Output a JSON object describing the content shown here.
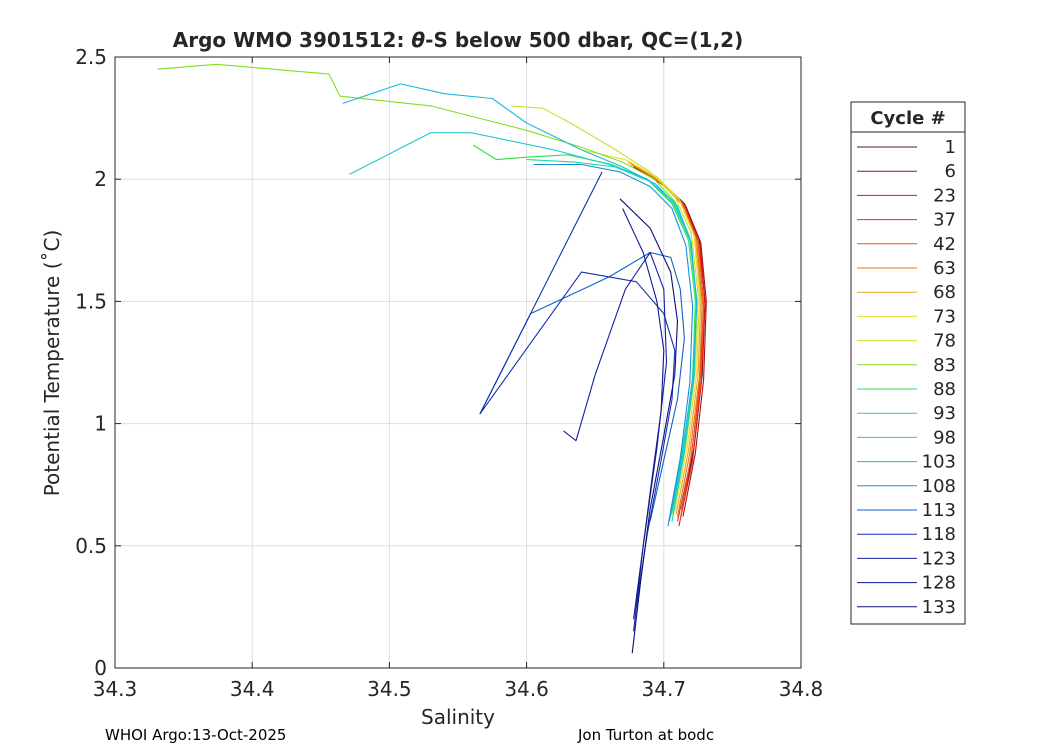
{
  "chart_data": {
    "type": "line",
    "title_prefix": "Argo WMO 3901512: ",
    "title_theta": "θ",
    "title_suffix": "-S below 500 dbar,  QC=(1,2)",
    "xlabel": "Salinity",
    "ylabel": "Potential Temperature (˚C)",
    "xlim": [
      34.3,
      34.8
    ],
    "ylim": [
      0,
      2.5
    ],
    "xticks": [
      "34.3",
      "34.4",
      "34.5",
      "34.6",
      "34.7",
      "34.8"
    ],
    "yticks": [
      "0",
      "0.5",
      "1",
      "1.5",
      "2",
      "2.5"
    ],
    "grid": true,
    "legend_title": "Cycle #",
    "legend_position": "right-outside",
    "series": [
      {
        "name": "1",
        "color": "#6b1010",
        "x": [
          34.678,
          34.7,
          34.715,
          34.726,
          34.73,
          34.728,
          34.722,
          34.713
        ],
        "y": [
          2.05,
          1.98,
          1.9,
          1.75,
          1.5,
          1.2,
          0.9,
          0.65
        ]
      },
      {
        "name": "6",
        "color": "#a81010",
        "x": [
          34.682,
          34.702,
          34.716,
          34.727,
          34.731,
          34.729,
          34.723,
          34.714
        ],
        "y": [
          2.04,
          1.97,
          1.89,
          1.74,
          1.5,
          1.18,
          0.88,
          0.62
        ]
      },
      {
        "name": "23",
        "color": "#d41818",
        "x": [
          34.68,
          34.701,
          34.716,
          34.727,
          34.73,
          34.727,
          34.721,
          34.711
        ],
        "y": [
          2.05,
          1.97,
          1.88,
          1.72,
          1.48,
          1.15,
          0.85,
          0.58
        ]
      },
      {
        "name": "37",
        "color": "#e83018",
        "x": [
          34.678,
          34.699,
          34.715,
          34.726,
          34.729,
          34.726,
          34.72,
          34.71
        ],
        "y": [
          2.06,
          1.98,
          1.89,
          1.73,
          1.47,
          1.16,
          0.86,
          0.6
        ]
      },
      {
        "name": "42",
        "color": "#f05020",
        "x": [
          34.676,
          34.698,
          34.714,
          34.725,
          34.729,
          34.727,
          34.72,
          34.712
        ],
        "y": [
          2.06,
          1.99,
          1.9,
          1.74,
          1.49,
          1.17,
          0.87,
          0.61
        ]
      },
      {
        "name": "63",
        "color": "#e07818",
        "x": [
          34.675,
          34.697,
          34.713,
          34.724,
          34.728,
          34.726,
          34.719,
          34.71
        ],
        "y": [
          2.07,
          1.99,
          1.9,
          1.75,
          1.5,
          1.19,
          0.88,
          0.62
        ]
      },
      {
        "name": "68",
        "color": "#e8a820",
        "x": [
          34.674,
          34.696,
          34.712,
          34.723,
          34.727,
          34.725,
          34.718,
          34.709
        ],
        "y": [
          2.07,
          2.0,
          1.91,
          1.76,
          1.51,
          1.2,
          0.89,
          0.63
        ]
      },
      {
        "name": "73",
        "color": "#f0d830",
        "x": [
          34.64,
          34.672,
          34.695,
          34.711,
          34.722,
          34.726,
          34.724,
          34.717,
          34.708
        ],
        "y": [
          2.12,
          2.08,
          2.01,
          1.92,
          1.77,
          1.52,
          1.21,
          0.9,
          0.64
        ]
      },
      {
        "name": "78",
        "color": "#c8e030",
        "x": [
          34.589,
          34.612,
          34.635,
          34.665,
          34.69,
          34.708,
          34.72,
          34.725,
          34.723,
          34.716,
          34.707
        ],
        "y": [
          2.3,
          2.29,
          2.22,
          2.12,
          2.03,
          1.93,
          1.78,
          1.53,
          1.22,
          0.91,
          0.65
        ]
      },
      {
        "name": "83",
        "color": "#80e020",
        "x": [
          34.331,
          34.374,
          34.456,
          34.464,
          34.53,
          34.6,
          34.64,
          34.67,
          34.693,
          34.708,
          34.719,
          34.724,
          34.722,
          34.715,
          34.706
        ],
        "y": [
          2.45,
          2.47,
          2.43,
          2.34,
          2.3,
          2.2,
          2.13,
          2.07,
          2.0,
          1.91,
          1.76,
          1.51,
          1.2,
          0.89,
          0.63
        ]
      },
      {
        "name": "88",
        "color": "#30e050",
        "x": [
          34.561,
          34.578,
          34.6,
          34.63,
          34.662,
          34.688,
          34.706,
          34.718,
          34.723,
          34.721,
          34.714,
          34.705
        ],
        "y": [
          2.14,
          2.08,
          2.09,
          2.1,
          2.06,
          2.0,
          1.9,
          1.75,
          1.5,
          1.19,
          0.88,
          0.62
        ]
      },
      {
        "name": "93",
        "color": "#20d8a0",
        "x": [
          34.6,
          34.635,
          34.665,
          34.69,
          34.707,
          34.719,
          34.724,
          34.722,
          34.715,
          34.706
        ],
        "y": [
          2.08,
          2.07,
          2.05,
          1.99,
          1.9,
          1.75,
          1.5,
          1.19,
          0.88,
          0.6
        ]
      },
      {
        "name": "98",
        "color": "#20c8d0",
        "x": [
          34.471,
          34.53,
          34.56,
          34.62,
          34.66,
          34.688,
          34.707,
          34.719,
          34.724,
          34.722,
          34.715,
          34.706
        ],
        "y": [
          2.02,
          2.19,
          2.19,
          2.12,
          2.06,
          2.0,
          1.91,
          1.76,
          1.51,
          1.2,
          0.89,
          0.64
        ]
      },
      {
        "name": "103",
        "color": "#18b8e0",
        "x": [
          34.466,
          34.508,
          34.54,
          34.575,
          34.6,
          34.64,
          34.67,
          34.694,
          34.71,
          34.72,
          34.724,
          34.721,
          34.713,
          34.704
        ],
        "y": [
          2.31,
          2.39,
          2.35,
          2.33,
          2.23,
          2.12,
          2.05,
          1.98,
          1.89,
          1.74,
          1.49,
          1.18,
          0.87,
          0.6
        ]
      },
      {
        "name": "108",
        "color": "#1890d8",
        "x": [
          34.605,
          34.64,
          34.668,
          34.69,
          34.706,
          34.716,
          34.721,
          34.719,
          34.712,
          34.703
        ],
        "y": [
          2.06,
          2.06,
          2.03,
          1.97,
          1.88,
          1.73,
          1.48,
          1.17,
          0.86,
          0.58
        ]
      },
      {
        "name": "113",
        "color": "#1060c8",
        "x": [
          34.566,
          34.603,
          34.66,
          34.69,
          34.705,
          34.712,
          34.715,
          34.71,
          34.7,
          34.69
        ],
        "y": [
          1.04,
          1.45,
          1.6,
          1.7,
          1.68,
          1.55,
          1.35,
          1.1,
          0.85,
          0.6
        ]
      },
      {
        "name": "118",
        "color": "#1030b0",
        "x": [
          34.655,
          34.566,
          34.64,
          34.68,
          34.7,
          34.708,
          34.706,
          34.698,
          34.688,
          34.68
        ],
        "y": [
          2.03,
          1.04,
          1.62,
          1.58,
          1.45,
          1.3,
          1.1,
          0.85,
          0.55,
          0.25
        ]
      },
      {
        "name": "123",
        "color": "#1020a0",
        "x": [
          34.627,
          34.636,
          34.65,
          34.672,
          34.69,
          34.7,
          34.702,
          34.695,
          34.685,
          34.678
        ],
        "y": [
          0.97,
          0.93,
          1.2,
          1.55,
          1.7,
          1.55,
          1.25,
          0.9,
          0.5,
          0.15
        ]
      },
      {
        "name": "128",
        "color": "#101890",
        "x": [
          34.67,
          34.685,
          34.695,
          34.7,
          34.698,
          34.692,
          34.685,
          34.678
        ],
        "y": [
          1.88,
          1.7,
          1.5,
          1.3,
          1.05,
          0.8,
          0.5,
          0.2
        ]
      },
      {
        "name": "133",
        "color": "#0a1078",
        "x": [
          34.668,
          34.69,
          34.705,
          34.71,
          34.708,
          34.7,
          34.69,
          34.683,
          34.677
        ],
        "y": [
          1.92,
          1.8,
          1.62,
          1.42,
          1.2,
          0.95,
          0.65,
          0.35,
          0.06
        ]
      }
    ]
  },
  "footer": {
    "left": "WHOI Argo:13-Oct-2025",
    "right": "Jon Turton at bodc"
  }
}
